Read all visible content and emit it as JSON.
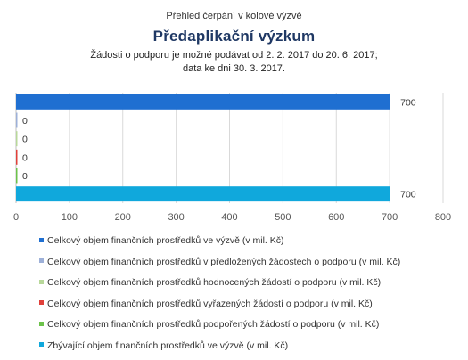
{
  "header": {
    "subtitle": "Přehled čerpání v kolové výzvě",
    "title": "Předaplikační výzkum",
    "desc_line1": "Žádosti o podporu je možné podávat od 2. 2. 2017 do 20. 6. 2017;",
    "desc_line2": "data ke dni 30. 3. 2017."
  },
  "chart_data": {
    "type": "bar",
    "orientation": "horizontal",
    "xlim": [
      0,
      800
    ],
    "xticks": [
      0,
      100,
      200,
      300,
      400,
      500,
      600,
      700,
      800
    ],
    "grid": true,
    "legend_position": "bottom",
    "series": [
      {
        "name": "Celkový objem finančních prostředků ve výzvě (v mil. Kč)",
        "value": 700,
        "label": "700",
        "color": "#1f6fd1"
      },
      {
        "name": "Celkový objem finančních prostředků v předložených žádostech o podporu (v mil. Kč)",
        "value": 0,
        "label": "0",
        "color": "#9db0d8"
      },
      {
        "name": "Celkový objem finančních prostředků hodnocených žádostí o podporu (v mil. Kč)",
        "value": 0,
        "label": "0",
        "color": "#b8d89a"
      },
      {
        "name": "Celkový objem finančních prostředků vyřazených žádostí o podporu (v mil. Kč)",
        "value": 0,
        "label": "0",
        "color": "#e0403a"
      },
      {
        "name": "Celkový objem finančních prostředků podpořených žádostí o podporu (v mil. Kč)",
        "value": 0,
        "label": "0",
        "color": "#6cc24a"
      },
      {
        "name": "Zbývající objem finančních prostředků ve výzvě (v mil. Kč)",
        "value": 700,
        "label": "700",
        "color": "#10a8dc"
      }
    ]
  }
}
